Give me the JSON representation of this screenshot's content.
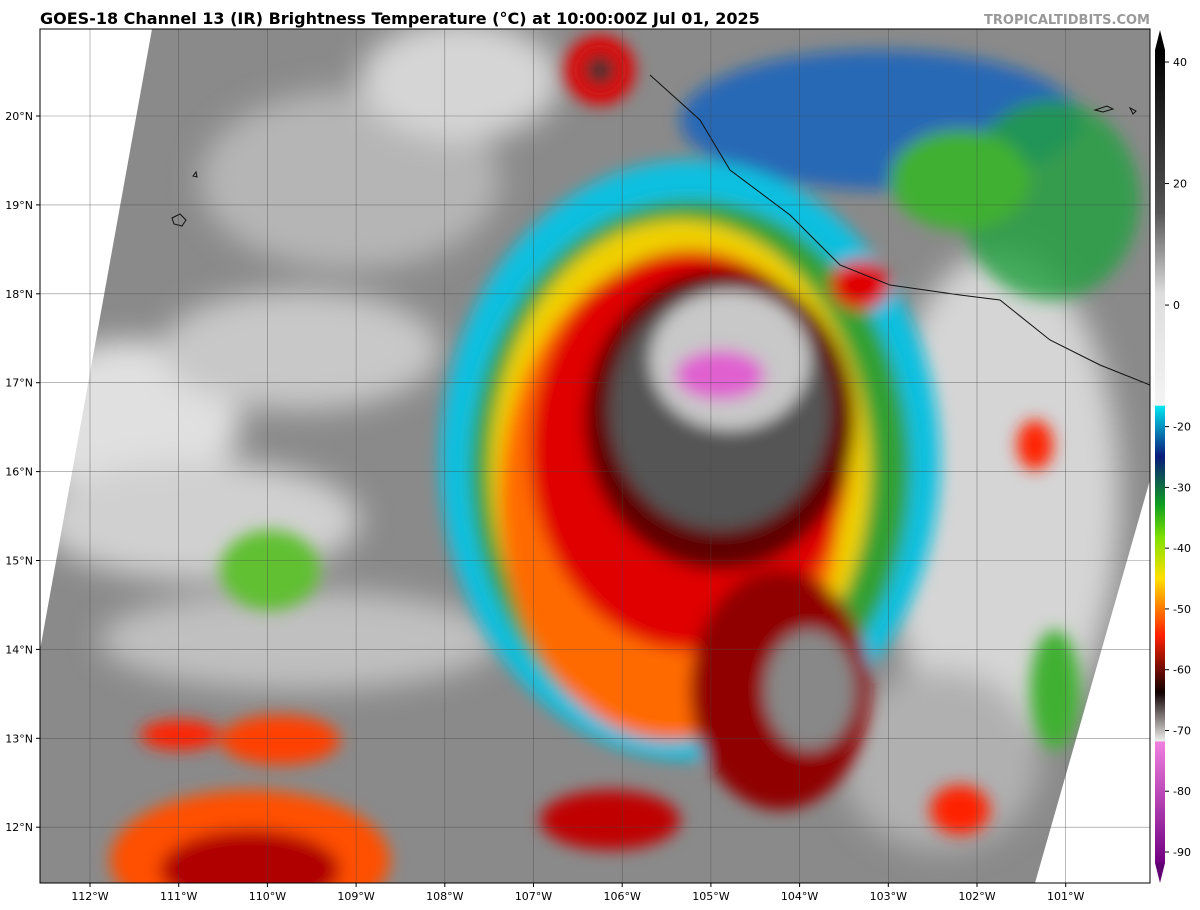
{
  "header": {
    "title": "GOES-18 Channel 13 (IR) Brightness Temperature (°C) at 10:00:00Z Jul 01, 2025",
    "watermark": "TROPICALTIDBITS.COM"
  },
  "map": {
    "lat_labels": [
      "20°N",
      "19°N",
      "18°N",
      "17°N",
      "16°N",
      "15°N",
      "14°N",
      "13°N",
      "12°N"
    ],
    "lon_labels": [
      "112°W",
      "111°W",
      "110°W",
      "109°W",
      "108°W",
      "107°W",
      "106°W",
      "105°W",
      "104°W",
      "103°W",
      "102°W",
      "101°W"
    ]
  },
  "colorbar": {
    "ticks": [
      40,
      20,
      0,
      -20,
      -30,
      -40,
      -50,
      -60,
      -70,
      -80,
      -90
    ]
  }
}
